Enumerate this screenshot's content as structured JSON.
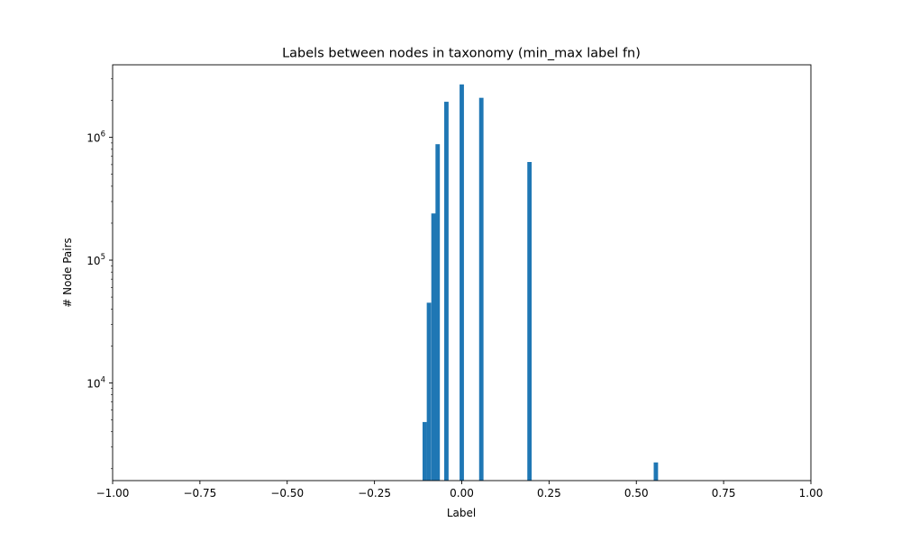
{
  "chart_data": {
    "type": "bar",
    "title": "Labels between nodes in taxonomy (min_max label fn)",
    "xlabel": "Label",
    "ylabel": "# Node Pairs",
    "xlim": [
      -1.0,
      1.0
    ],
    "ylim": [
      1600,
      3900000
    ],
    "yscale": "log",
    "grid": false,
    "legend": "none",
    "bar_color": "#1f77b4",
    "bar_width": 0.0125,
    "x_ticks": [
      -1.0,
      -0.75,
      -0.5,
      -0.25,
      0.0,
      0.25,
      0.5,
      0.75,
      1.0
    ],
    "x_tick_labels": [
      "−1.00",
      "−0.75",
      "−0.50",
      "−0.25",
      "0.00",
      "0.25",
      "0.50",
      "0.75",
      "1.00"
    ],
    "y_ticks": [
      {
        "value": 10000,
        "base": "10",
        "exp": "4"
      },
      {
        "value": 100000,
        "base": "10",
        "exp": "5"
      },
      {
        "value": 1000000,
        "base": "10",
        "exp": "6"
      }
    ],
    "bins": [
      {
        "x": -0.106,
        "value": 4800
      },
      {
        "x": -0.094,
        "value": 45000
      },
      {
        "x": -0.081,
        "value": 240000
      },
      {
        "x": -0.069,
        "value": 880000
      },
      {
        "x": -0.044,
        "value": 1950000
      },
      {
        "x": 0.0,
        "value": 2700000
      },
      {
        "x": 0.056,
        "value": 2100000
      },
      {
        "x": 0.194,
        "value": 630000
      },
      {
        "x": 0.556,
        "value": 2250
      }
    ]
  }
}
